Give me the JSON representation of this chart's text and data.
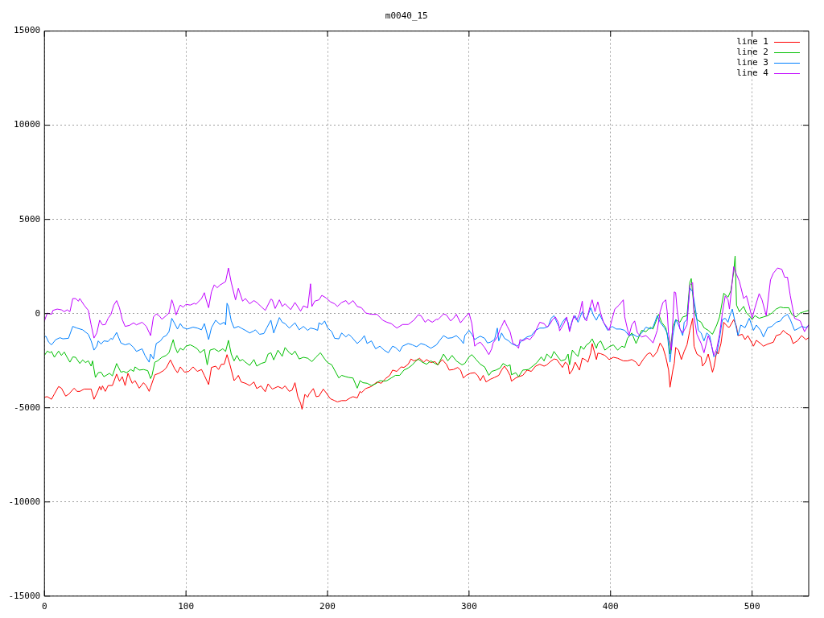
{
  "chart_data": {
    "type": "line",
    "title": "m0040_15",
    "xlim": [
      0,
      540
    ],
    "xticks": [
      0,
      100,
      200,
      300,
      400,
      500
    ],
    "ylim": [
      -15000,
      15000
    ],
    "yticks": [
      -15000,
      -10000,
      -5000,
      0,
      5000,
      10000,
      15000
    ],
    "grid": true,
    "legend": "top right",
    "series": [
      {
        "name": "line 1",
        "color": "#ff0000",
        "x": [
          0,
          2,
          5,
          7,
          10,
          12,
          15,
          17,
          21,
          23,
          25,
          28,
          33,
          35,
          37,
          39,
          40,
          41,
          43,
          45,
          48,
          51,
          53,
          55,
          57,
          59,
          62,
          64,
          67,
          70,
          72,
          74,
          75,
          78,
          81,
          84,
          86,
          89,
          92,
          94,
          96,
          99,
          102,
          105,
          108,
          111,
          113,
          116,
          118,
          121,
          123,
          125,
          127,
          129,
          131,
          134,
          136,
          137,
          139,
          142,
          145,
          148,
          150,
          153,
          156,
          158,
          161,
          165,
          168,
          170,
          173,
          175,
          177,
          179,
          181,
          182,
          184,
          186,
          187,
          190,
          192,
          194,
          197,
          199,
          202,
          205,
          207,
          210,
          213,
          216,
          218,
          221,
          223,
          224,
          227,
          231,
          235,
          238,
          241,
          244,
          246,
          249,
          252,
          254,
          257,
          259,
          261,
          264,
          265,
          268,
          270,
          273,
          276,
          278,
          281,
          284,
          286,
          289,
          292,
          294,
          296,
          298,
          301,
          304,
          306,
          308,
          310,
          312,
          315,
          318,
          321,
          323,
          325,
          327,
          329,
          330,
          333,
          335,
          338,
          341,
          344,
          347,
          350,
          353,
          355,
          357,
          360,
          362,
          364,
          366,
          368,
          370,
          371,
          373,
          375,
          378,
          380,
          382,
          384,
          386,
          387,
          390,
          391,
          393,
          396,
          399,
          402,
          405,
          409,
          412,
          415,
          418,
          420,
          423,
          426,
          428,
          430,
          433,
          435,
          437,
          439,
          441,
          442,
          444,
          445,
          446,
          448,
          450,
          452,
          454,
          456,
          458,
          459,
          461,
          464,
          465,
          467,
          469,
          472,
          473,
          475,
          476,
          478,
          480,
          483,
          484,
          487,
          489,
          490,
          493,
          495,
          497,
          501,
          503,
          506,
          508,
          511,
          515,
          517,
          520,
          522,
          524,
          527,
          529,
          532,
          535,
          538,
          540
        ],
        "values": [
          -4440,
          -4410,
          -4550,
          -4270,
          -3870,
          -3960,
          -4380,
          -4290,
          -3960,
          -4130,
          -4130,
          -4010,
          -4010,
          -4550,
          -4240,
          -3870,
          -4060,
          -3840,
          -4130,
          -3820,
          -3820,
          -3210,
          -3590,
          -3350,
          -3820,
          -3170,
          -3700,
          -3560,
          -3960,
          -3670,
          -3840,
          -4130,
          -3910,
          -3250,
          -3170,
          -3030,
          -2890,
          -2460,
          -2930,
          -3140,
          -2830,
          -3110,
          -3070,
          -2830,
          -3070,
          -2970,
          -3280,
          -3770,
          -2860,
          -2790,
          -2970,
          -2690,
          -2690,
          -2180,
          -2700,
          -3560,
          -3390,
          -3280,
          -3630,
          -3700,
          -3820,
          -3630,
          -3980,
          -3840,
          -4150,
          -3730,
          -4010,
          -3870,
          -3980,
          -3840,
          -4130,
          -4060,
          -3670,
          -4410,
          -4760,
          -5080,
          -4290,
          -4440,
          -4270,
          -3980,
          -4410,
          -4380,
          -4010,
          -4200,
          -4520,
          -4620,
          -4690,
          -4620,
          -4620,
          -4480,
          -4410,
          -4480,
          -4130,
          -4200,
          -3980,
          -3870,
          -3630,
          -3700,
          -3450,
          -3280,
          -3000,
          -3070,
          -2830,
          -2860,
          -2690,
          -2410,
          -2510,
          -2440,
          -2370,
          -2580,
          -2440,
          -2600,
          -2550,
          -2720,
          -2440,
          -2690,
          -3000,
          -2970,
          -2860,
          -3000,
          -3420,
          -3280,
          -3170,
          -3140,
          -3280,
          -3560,
          -3280,
          -3630,
          -3490,
          -3390,
          -3280,
          -3000,
          -2790,
          -3000,
          -3280,
          -3590,
          -3420,
          -3350,
          -3280,
          -3000,
          -3070,
          -2790,
          -2690,
          -2790,
          -2720,
          -2580,
          -2410,
          -2440,
          -2650,
          -2860,
          -2580,
          -2720,
          -3210,
          -3000,
          -2580,
          -3000,
          -2370,
          -2440,
          -2580,
          -2080,
          -1590,
          -2440,
          -2100,
          -2130,
          -2220,
          -2440,
          -2320,
          -2370,
          -2510,
          -2510,
          -2440,
          -2580,
          -2790,
          -2440,
          -2150,
          -2080,
          -2300,
          -2010,
          -1560,
          -1800,
          -2300,
          -3000,
          -3910,
          -3000,
          -2650,
          -1800,
          -1940,
          -2440,
          -2010,
          -1660,
          -890,
          -250,
          -1730,
          -2150,
          -2300,
          -2790,
          -2580,
          -2150,
          -3110,
          -2860,
          -2010,
          -2150,
          -1590,
          -460,
          -720,
          -720,
          -320,
          -680,
          -1170,
          -1100,
          -1380,
          -1170,
          -1730,
          -1420,
          -1590,
          -1730,
          -1620,
          -1520,
          -1170,
          -1100,
          -890,
          -1030,
          -1170,
          -1590,
          -1450,
          -1170,
          -1380,
          -1280
        ]
      },
      {
        "name": "line 2",
        "color": "#00c000",
        "x": [
          0,
          2,
          4,
          5,
          7,
          10,
          12,
          14,
          16,
          18,
          20,
          22,
          25,
          27,
          29,
          31,
          33,
          34,
          36,
          38,
          40,
          42,
          46,
          48,
          51,
          54,
          56,
          58,
          61,
          63,
          64,
          67,
          70,
          73,
          75,
          76,
          78,
          80,
          83,
          86,
          88,
          91,
          92,
          94,
          96,
          98,
          100,
          103,
          105,
          108,
          110,
          113,
          115,
          117,
          120,
          123,
          126,
          128,
          130,
          132,
          134,
          136,
          138,
          140,
          142,
          145,
          148,
          150,
          153,
          156,
          158,
          160,
          162,
          165,
          168,
          170,
          173,
          175,
          177,
          180,
          183,
          186,
          189,
          192,
          195,
          198,
          200,
          203,
          205,
          208,
          210,
          213,
          215,
          218,
          221,
          223,
          225,
          228,
          231,
          234,
          237,
          240,
          242,
          245,
          248,
          251,
          254,
          257,
          260,
          262,
          264,
          267,
          270,
          273,
          276,
          278,
          282,
          285,
          288,
          291,
          295,
          297,
          300,
          302,
          305,
          308,
          311,
          314,
          316,
          319,
          322,
          324,
          327,
          329,
          330,
          333,
          335,
          338,
          342,
          345,
          348,
          351,
          353,
          355,
          358,
          360,
          363,
          365,
          368,
          370,
          371,
          373,
          375,
          377,
          379,
          381,
          383,
          385,
          387,
          390,
          391,
          393,
          396,
          399,
          402,
          405,
          408,
          410,
          412,
          415,
          418,
          420,
          422,
          425,
          428,
          430,
          434,
          436,
          439,
          441,
          442,
          444,
          446,
          449,
          451,
          454,
          456,
          457,
          459,
          461,
          464,
          466,
          469,
          472,
          475,
          477,
          480,
          483,
          485,
          487,
          488,
          489,
          491,
          494,
          496,
          498,
          500,
          502,
          505,
          508,
          511,
          514,
          517,
          520,
          522,
          526,
          528,
          531,
          534,
          537,
          540
        ],
        "values": [
          -2220,
          -1990,
          -2080,
          -2010,
          -2320,
          -1990,
          -2220,
          -2040,
          -2320,
          -2580,
          -2300,
          -2320,
          -2650,
          -2460,
          -2600,
          -2510,
          -2790,
          -2510,
          -3390,
          -3140,
          -3110,
          -3350,
          -3170,
          -3310,
          -2650,
          -3110,
          -3070,
          -3140,
          -2970,
          -3070,
          -2830,
          -3000,
          -2970,
          -3030,
          -3450,
          -3280,
          -2580,
          -2510,
          -2320,
          -2220,
          -2080,
          -1380,
          -1730,
          -2080,
          -1840,
          -1940,
          -1730,
          -1660,
          -1730,
          -1870,
          -2080,
          -1900,
          -2720,
          -1940,
          -1870,
          -2010,
          -1870,
          -2010,
          -1420,
          -2150,
          -2510,
          -2220,
          -2510,
          -2440,
          -2580,
          -2750,
          -2440,
          -2790,
          -2650,
          -2580,
          -2150,
          -2080,
          -2460,
          -1940,
          -2270,
          -1800,
          -2080,
          -2180,
          -1990,
          -2410,
          -2320,
          -2370,
          -2550,
          -2300,
          -2080,
          -2410,
          -2600,
          -2720,
          -3000,
          -3420,
          -3280,
          -3350,
          -3390,
          -3420,
          -3960,
          -3560,
          -3670,
          -3700,
          -3820,
          -3730,
          -3560,
          -3590,
          -3560,
          -3420,
          -3280,
          -3280,
          -3000,
          -2890,
          -2720,
          -2550,
          -2410,
          -2580,
          -2690,
          -2510,
          -2650,
          -2720,
          -2150,
          -2510,
          -2220,
          -2510,
          -2720,
          -2650,
          -2300,
          -2180,
          -2440,
          -2690,
          -2830,
          -3280,
          -3070,
          -3000,
          -2890,
          -2650,
          -2790,
          -2720,
          -3250,
          -3140,
          -3350,
          -3000,
          -2970,
          -2790,
          -2600,
          -2300,
          -2510,
          -2150,
          -2370,
          -2010,
          -2320,
          -2510,
          -2440,
          -2150,
          -2720,
          -1940,
          -2130,
          -2270,
          -1730,
          -1900,
          -1660,
          -1560,
          -1340,
          -1840,
          -1590,
          -1450,
          -1940,
          -1760,
          -1660,
          -1940,
          -1730,
          -1800,
          -1310,
          -1030,
          -1590,
          -1240,
          -890,
          -960,
          -720,
          -820,
          -40,
          -460,
          -750,
          -1450,
          -2150,
          -750,
          -320,
          -460,
          -180,
          -110,
          1650,
          1860,
          240,
          -320,
          -460,
          -750,
          -890,
          -1100,
          -610,
          -180,
          1080,
          870,
          1220,
          2210,
          3060,
          450,
          100,
          380,
          30,
          -110,
          -320,
          -110,
          -250,
          -180,
          -110,
          30,
          240,
          350,
          310,
          310,
          -40,
          -180,
          30,
          100,
          170
        ]
      },
      {
        "name": "line 3",
        "color": "#0080ff",
        "x": [
          0,
          1,
          3,
          5,
          8,
          11,
          13,
          17,
          20,
          23,
          27,
          31,
          33,
          35,
          37,
          38,
          40,
          42,
          45,
          47,
          48,
          51,
          54,
          57,
          60,
          63,
          65,
          69,
          71,
          74,
          75,
          77,
          79,
          82,
          84,
          86,
          88,
          90,
          92,
          94,
          96,
          98,
          101,
          105,
          108,
          111,
          113,
          116,
          118,
          121,
          124,
          127,
          128,
          129,
          130,
          132,
          134,
          137,
          139,
          142,
          145,
          148,
          149,
          152,
          155,
          157,
          160,
          162,
          164,
          166,
          168,
          170,
          173,
          177,
          180,
          183,
          186,
          188,
          191,
          193,
          194,
          196,
          198,
          200,
          203,
          205,
          208,
          210,
          213,
          215,
          217,
          221,
          224,
          226,
          228,
          231,
          234,
          237,
          240,
          243,
          246,
          248,
          251,
          253,
          257,
          260,
          261,
          263,
          266,
          269,
          273,
          277,
          279,
          282,
          285,
          288,
          291,
          294,
          296,
          297,
          300,
          302,
          304,
          306,
          308,
          311,
          313,
          315,
          318,
          320,
          321,
          323,
          325,
          328,
          330,
          334,
          335,
          337,
          341,
          344,
          347,
          350,
          353,
          356,
          358,
          360,
          362,
          364,
          366,
          368,
          370,
          371,
          373,
          375,
          377,
          380,
          382,
          384,
          386,
          388,
          390,
          392,
          395,
          398,
          401,
          404,
          407,
          410,
          413,
          416,
          419,
          422,
          425,
          428,
          430,
          433,
          435,
          438,
          440,
          441,
          442,
          444,
          446,
          448,
          451,
          452,
          454,
          456,
          458,
          460,
          462,
          464,
          466,
          468,
          470,
          473,
          475,
          477,
          479,
          481,
          483,
          484,
          486,
          488,
          490,
          492,
          495,
          498,
          501,
          503,
          506,
          508,
          511,
          514,
          517,
          520,
          522,
          525,
          527,
          530,
          532,
          535,
          538,
          540
        ],
        "values": [
          -1240,
          -1200,
          -1520,
          -1660,
          -1380,
          -1280,
          -1340,
          -1310,
          -680,
          -770,
          -860,
          -1100,
          -1450,
          -1940,
          -1730,
          -1450,
          -1620,
          -1450,
          -1480,
          -1310,
          -1380,
          -1000,
          -1560,
          -1660,
          -1590,
          -1800,
          -2010,
          -1870,
          -2220,
          -2580,
          -2150,
          -2410,
          -1590,
          -1450,
          -1240,
          -1170,
          -960,
          -250,
          -530,
          -820,
          -530,
          -750,
          -820,
          -720,
          -770,
          -860,
          -530,
          -1380,
          -750,
          -350,
          -580,
          -460,
          -600,
          550,
          380,
          -390,
          -770,
          -680,
          -770,
          -890,
          -1030,
          -920,
          -860,
          -1100,
          -1060,
          -770,
          -350,
          -1030,
          -610,
          -210,
          -460,
          -530,
          -770,
          -490,
          -860,
          -680,
          -890,
          -770,
          -820,
          -890,
          -490,
          -580,
          -390,
          -750,
          -960,
          -1310,
          -1340,
          -1030,
          -1240,
          -1100,
          -1240,
          -1590,
          -1380,
          -1170,
          -1590,
          -1450,
          -1870,
          -1730,
          -1940,
          -2080,
          -1730,
          -1800,
          -2010,
          -1730,
          -1590,
          -1660,
          -1700,
          -1760,
          -1590,
          -1660,
          -1840,
          -1660,
          -1450,
          -1170,
          -1310,
          -1280,
          -1170,
          -1380,
          -1590,
          -1170,
          -890,
          -1100,
          -1380,
          -1280,
          -1200,
          -1310,
          -1560,
          -1520,
          -1380,
          -770,
          -1450,
          -1030,
          -1310,
          -1450,
          -1590,
          -1730,
          -1660,
          -1450,
          -1240,
          -1170,
          -890,
          -770,
          -770,
          -680,
          -250,
          -110,
          -460,
          -750,
          -460,
          -250,
          -460,
          -890,
          -350,
          -110,
          -460,
          100,
          -320,
          -110,
          310,
          -110,
          -350,
          -20,
          -460,
          -890,
          -680,
          -820,
          -820,
          -890,
          -1170,
          -1100,
          -1240,
          -1030,
          -720,
          -820,
          -720,
          -110,
          -460,
          -750,
          -1030,
          -1730,
          -2580,
          -1170,
          -320,
          -610,
          -1170,
          -460,
          -320,
          1370,
          1150,
          240,
          -890,
          -1030,
          -1450,
          -1030,
          -1170,
          -2300,
          -2150,
          -1310,
          -320,
          -250,
          -460,
          -180,
          240,
          -460,
          -1170,
          -610,
          -750,
          -250,
          -890,
          -610,
          -890,
          -1240,
          -750,
          -680,
          -460,
          -390,
          -180,
          -40,
          -320,
          -890,
          -820,
          -680,
          -750,
          -610
        ]
      },
      {
        "name": "line 4",
        "color": "#c000ff",
        "x": [
          0,
          2,
          5,
          6,
          9,
          12,
          14,
          16,
          18,
          20,
          22,
          24,
          25,
          28,
          31,
          33,
          35,
          37,
          39,
          41,
          43,
          45,
          47,
          49,
          51,
          53,
          55,
          57,
          60,
          63,
          65,
          69,
          72,
          75,
          77,
          79,
          81,
          83,
          86,
          88,
          90,
          91,
          93,
          95,
          96,
          98,
          100,
          103,
          106,
          107,
          111,
          113,
          114,
          116,
          118,
          120,
          122,
          124,
          128,
          130,
          132,
          135,
          137,
          140,
          142,
          145,
          148,
          150,
          153,
          156,
          160,
          161,
          163,
          166,
          168,
          170,
          174,
          177,
          181,
          183,
          186,
          188,
          189,
          191,
          194,
          196,
          199,
          202,
          205,
          207,
          210,
          213,
          215,
          218,
          221,
          224,
          227,
          231,
          235,
          239,
          242,
          245,
          249,
          253,
          257,
          261,
          264,
          266,
          269,
          271,
          274,
          277,
          278,
          282,
          284,
          287,
          289,
          291,
          294,
          297,
          300,
          302,
          304,
          306,
          308,
          311,
          314,
          316,
          317,
          320,
          322,
          323,
          325,
          327,
          329,
          331,
          333,
          335,
          336,
          338,
          341,
          343,
          346,
          348,
          350,
          353,
          355,
          357,
          359,
          361,
          363,
          364,
          367,
          369,
          371,
          374,
          376,
          378,
          380,
          381,
          383,
          385,
          387,
          389,
          391,
          393,
          395,
          399,
          401,
          403,
          406,
          409,
          410,
          413,
          415,
          417,
          419,
          422,
          425,
          428,
          430,
          433,
          435,
          437,
          439,
          440,
          441,
          443,
          445,
          446,
          447,
          449,
          451,
          454,
          456,
          458,
          459,
          461,
          464,
          466,
          469,
          471,
          473,
          475,
          477,
          479,
          481,
          483,
          484,
          486,
          487,
          489,
          491,
          494,
          496,
          498,
          500,
          502,
          505,
          507,
          510,
          513,
          515,
          518,
          521,
          523,
          525,
          527,
          530,
          534,
          537,
          540
        ],
        "values": [
          -390,
          30,
          -40,
          170,
          240,
          200,
          100,
          200,
          100,
          800,
          800,
          660,
          800,
          450,
          170,
          -600,
          -1300,
          -1030,
          -350,
          -600,
          -580,
          -250,
          -40,
          450,
          690,
          310,
          -320,
          -680,
          -630,
          -490,
          -600,
          -460,
          -680,
          -1170,
          -180,
          -20,
          -110,
          -300,
          -110,
          30,
          730,
          520,
          -70,
          310,
          450,
          340,
          490,
          450,
          550,
          490,
          800,
          1110,
          800,
          310,
          1150,
          1530,
          1370,
          1510,
          1700,
          2420,
          1650,
          730,
          1340,
          660,
          800,
          520,
          690,
          590,
          380,
          170,
          770,
          730,
          270,
          730,
          380,
          520,
          210,
          590,
          130,
          410,
          310,
          1580,
          380,
          660,
          730,
          970,
          830,
          630,
          520,
          380,
          590,
          690,
          490,
          690,
          380,
          310,
          30,
          -40,
          -40,
          -350,
          -460,
          -530,
          -770,
          -580,
          -580,
          -350,
          -70,
          -110,
          -460,
          -320,
          -460,
          -300,
          -320,
          -20,
          -70,
          -390,
          -250,
          -40,
          -490,
          -210,
          30,
          -530,
          -1730,
          -1590,
          -1520,
          -1800,
          -2180,
          -1870,
          -1560,
          -1240,
          -820,
          -680,
          -350,
          -680,
          -960,
          -1590,
          -1660,
          -1840,
          -1380,
          -1450,
          -1310,
          -1380,
          -1100,
          -770,
          -460,
          -530,
          -720,
          -580,
          -320,
          -180,
          -460,
          -920,
          -530,
          -180,
          -960,
          -110,
          -350,
          -40,
          660,
          -180,
          -390,
          240,
          730,
          100,
          620,
          30,
          -460,
          -890,
          -320,
          240,
          450,
          730,
          -180,
          -1170,
          -600,
          -390,
          -1030,
          -1240,
          -1170,
          -1380,
          -1560,
          -890,
          100,
          590,
          730,
          100,
          -1100,
          -1940,
          1150,
          1110,
          240,
          -820,
          -1030,
          -600,
          1510,
          1650,
          -180,
          -1100,
          -1590,
          -2080,
          -1170,
          -1590,
          -2220,
          -1870,
          -1100,
          30,
          940,
          730,
          240,
          1720,
          2490,
          2070,
          1720,
          800,
          940,
          380,
          -250,
          310,
          1060,
          730,
          -110,
          1790,
          2140,
          2420,
          2350,
          1930,
          1930,
          940,
          -250,
          -390,
          -960,
          -600
        ]
      }
    ]
  }
}
